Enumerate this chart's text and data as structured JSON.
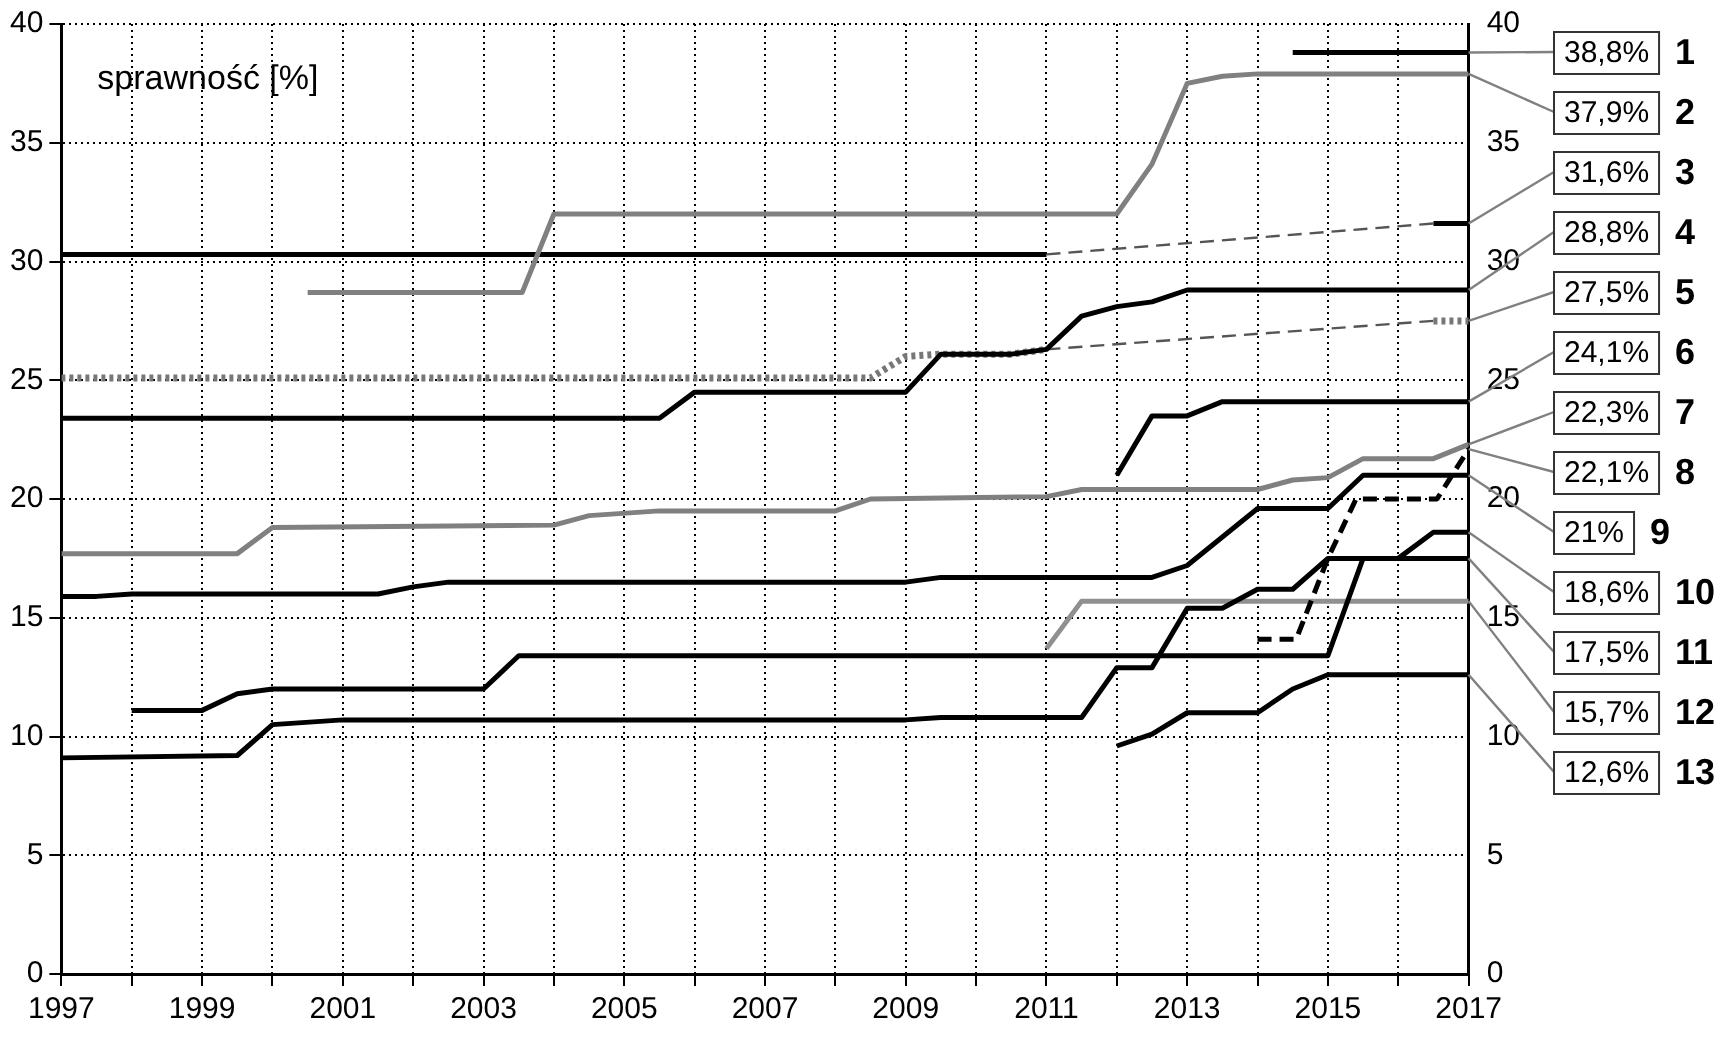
{
  "chart_data": {
    "type": "line",
    "ylabel": "sprawność [%]",
    "legend": false,
    "grid": true,
    "marker": "none",
    "xlim": [
      1997,
      2017
    ],
    "xticks": [
      1997,
      {
        "value": 1998,
        "label": null
      },
      1999,
      {
        "value": 2000,
        "label": null
      },
      2001,
      {
        "value": 2002,
        "label": null
      },
      2003,
      {
        "value": 2004,
        "label": null
      },
      2005,
      {
        "value": 2006,
        "label": null
      },
      2007,
      {
        "value": 2008,
        "label": null
      },
      2009,
      {
        "value": 2010,
        "label": null
      },
      2011,
      {
        "value": 2012,
        "label": null
      },
      2013,
      {
        "value": 2014,
        "label": null
      },
      2015,
      {
        "value": 2016,
        "label": null
      },
      2017
    ],
    "ylim": [
      0,
      40
    ],
    "yticks": [
      0,
      5,
      10,
      15,
      20,
      25,
      30,
      35,
      40
    ],
    "y2lim": [
      0,
      40
    ],
    "y2ticks": [
      0,
      5,
      10,
      15,
      20,
      25,
      30,
      35,
      40
    ],
    "series": [
      {
        "name": "1",
        "color": "#000000",
        "line_style": "solid",
        "x": [
          2014.5,
          2017
        ],
        "values": [
          38.8,
          38.8
        ],
        "value_labels": [
          null,
          "38,8%"
        ]
      },
      {
        "name": "2",
        "color": "#808080",
        "line_style": "solid",
        "x": [
          2000.5,
          2003.55,
          2004,
          2012,
          2012.5,
          2013,
          2013.5,
          2014,
          2017
        ],
        "values": [
          28.7,
          28.7,
          32,
          32,
          34.1,
          37.5,
          37.8,
          37.9,
          37.9
        ],
        "value_labels": [
          null,
          null,
          null,
          null,
          null,
          null,
          null,
          null,
          "37,9%"
        ]
      },
      {
        "name": "3",
        "color": "#000000",
        "line_style": "solid",
        "x": [
          1997,
          2011,
          2013,
          2016.5,
          2017
        ],
        "values": [
          30.3,
          30.3,
          null,
          31.6,
          31.6
        ],
        "value_labels": [
          null,
          null,
          null,
          null,
          "31,6%"
        ]
      },
      {
        "name": "4",
        "color": "#000000",
        "line_style": "solid",
        "x": [
          1997,
          2005.5,
          2006,
          2009,
          2009.5,
          2010.5,
          2011,
          2011.5,
          2012,
          2012.5,
          2013,
          2017
        ],
        "values": [
          23.4,
          23.4,
          24.5,
          24.5,
          26.1,
          26.1,
          26.3,
          27.7,
          28.1,
          28.3,
          28.8,
          28.8
        ],
        "value_labels": [
          null,
          null,
          null,
          null,
          null,
          null,
          null,
          null,
          null,
          null,
          null,
          "28,8%"
        ]
      },
      {
        "name": "5",
        "color": "#777777",
        "line_style": "dotted",
        "x": [
          1997,
          2008.5,
          2009,
          2009.5,
          2010.5,
          2011,
          2013,
          2016.5,
          2017
        ],
        "values": [
          25.1,
          25.1,
          26,
          26.1,
          26.1,
          26.3,
          null,
          27.5,
          27.5
        ],
        "value_labels": [
          null,
          null,
          null,
          null,
          null,
          null,
          null,
          null,
          "27,5%"
        ]
      },
      {
        "name": "6",
        "color": "#000000",
        "line_style": "solid",
        "x": [
          2012,
          2012.5,
          2013,
          2013.5,
          2017
        ],
        "values": [
          21,
          23.5,
          23.5,
          24.1,
          24.1
        ],
        "value_labels": [
          null,
          null,
          null,
          null,
          "24,1%"
        ]
      },
      {
        "name": "7",
        "color": "#808080",
        "line_style": "solid",
        "x": [
          1997,
          1999.5,
          2000,
          2004,
          2004.5,
          2005.5,
          2008,
          2008.5,
          2011,
          2011.5,
          2014,
          2014.5,
          2015,
          2015.5,
          2016.5,
          2017
        ],
        "values": [
          17.7,
          17.7,
          18.8,
          18.9,
          19.3,
          19.5,
          19.5,
          20,
          20.1,
          20.4,
          20.4,
          20.8,
          20.9,
          21.7,
          21.7,
          22.3
        ],
        "value_labels": [
          null,
          null,
          null,
          null,
          null,
          null,
          null,
          null,
          null,
          null,
          null,
          null,
          null,
          null,
          null,
          "22,3%"
        ]
      },
      {
        "name": "8",
        "color": "#000000",
        "line_style": "dashed",
        "x": [
          2014,
          2014.55,
          2015,
          2015.4,
          2016.55,
          2017
        ],
        "values": [
          14.1,
          14.1,
          17.5,
          20,
          20,
          22.1
        ],
        "value_labels": [
          null,
          null,
          null,
          null,
          null,
          "22,1%"
        ]
      },
      {
        "name": "9",
        "color": "#000000",
        "line_style": "solid",
        "x": [
          1997,
          1997.5,
          1998,
          2001.5,
          2002,
          2002.5,
          2009,
          2009.5,
          2012.5,
          2013,
          2014,
          2015,
          2015.5,
          2017
        ],
        "values": [
          15.9,
          15.9,
          16,
          16,
          16.3,
          16.5,
          16.5,
          16.7,
          16.7,
          17.2,
          19.6,
          19.6,
          21,
          21
        ],
        "value_labels": [
          null,
          null,
          null,
          null,
          null,
          null,
          null,
          null,
          null,
          null,
          null,
          null,
          null,
          "21%"
        ]
      },
      {
        "name": "10",
        "color": "#000000",
        "line_style": "solid",
        "x": [
          1997,
          1999.5,
          2000,
          2001,
          2009,
          2009.5,
          2011.5,
          2012,
          2012.5,
          2013,
          2013.5,
          2014,
          2014.5,
          2015,
          2016,
          2016.5,
          2017
        ],
        "values": [
          9.1,
          9.2,
          10.5,
          10.7,
          10.7,
          10.8,
          10.8,
          12.9,
          12.9,
          15.4,
          15.4,
          16.2,
          16.2,
          17.5,
          17.5,
          18.6,
          18.6
        ],
        "value_labels": [
          null,
          null,
          null,
          null,
          null,
          null,
          null,
          null,
          null,
          null,
          null,
          null,
          null,
          null,
          null,
          null,
          "18,6%"
        ]
      },
      {
        "name": "11",
        "color": "#000000",
        "line_style": "solid",
        "x": [
          1998,
          1999,
          1999.5,
          2000,
          2003,
          2003.5,
          2015,
          2015.5,
          2017
        ],
        "values": [
          11.1,
          11.1,
          11.8,
          12,
          12,
          13.4,
          13.4,
          17.5,
          17.5
        ],
        "value_labels": [
          null,
          null,
          null,
          null,
          null,
          null,
          null,
          null,
          "17,5%"
        ]
      },
      {
        "name": "12",
        "color": "#909090",
        "line_style": "solid",
        "x": [
          2011,
          2011.5,
          2017
        ],
        "values": [
          13.7,
          15.7,
          15.7
        ],
        "value_labels": [
          null,
          null,
          "15,7%"
        ]
      },
      {
        "name": "13",
        "color": "#000000",
        "line_style": "solid",
        "x": [
          2012,
          2012.5,
          2013,
          2014,
          2014.5,
          2015,
          2017
        ],
        "values": [
          9.6,
          10.1,
          11,
          11,
          12,
          12.6,
          12.6
        ],
        "value_labels": [
          null,
          null,
          null,
          null,
          null,
          null,
          "12,6%"
        ]
      },
      {
        "color": "#555555",
        "line_style": "dashed",
        "x": [
          2011,
          2016.5
        ],
        "values": [
          30.3,
          31.6
        ]
      },
      {
        "color": "#555555",
        "line_style": "dashed",
        "x": [
          2011,
          2016.5
        ],
        "values": [
          26.3,
          27.5
        ]
      }
    ]
  }
}
